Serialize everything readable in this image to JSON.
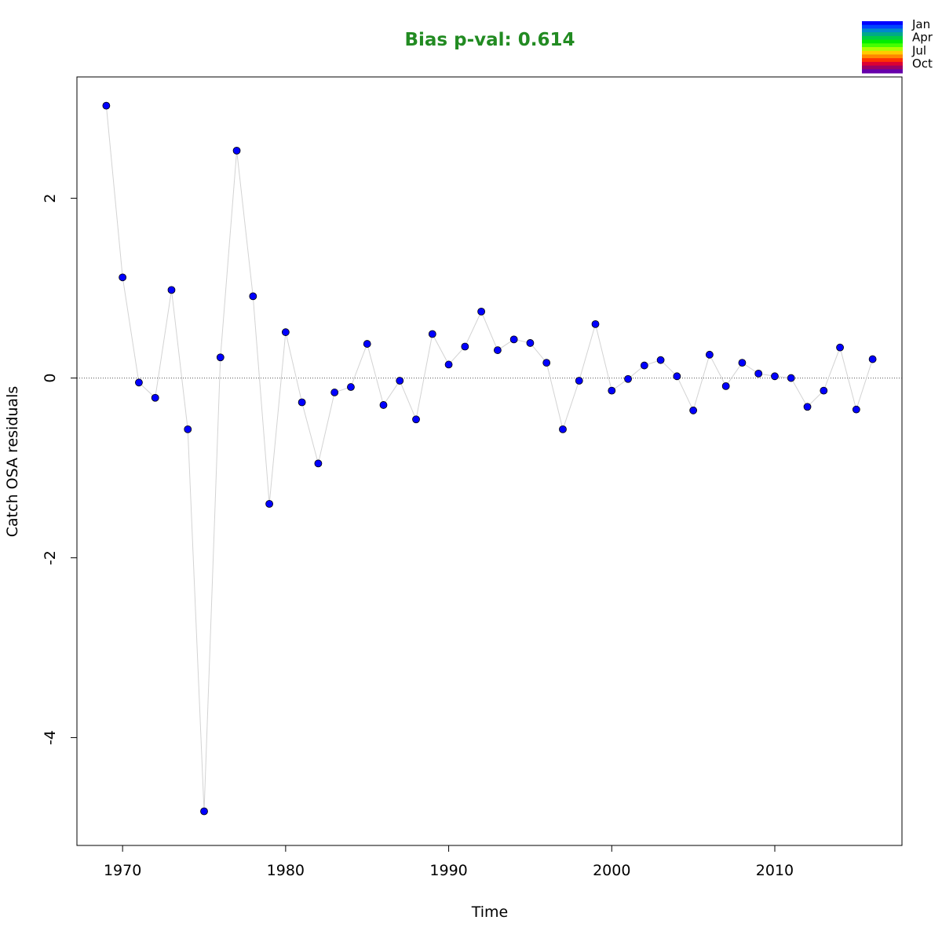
{
  "chart_data": {
    "type": "scatter",
    "title": "Bias p-val: 0.614",
    "title_color": "#228b22",
    "xlabel": "Time",
    "ylabel": "Catch OSA residuals",
    "xlim": [
      1967.2,
      2017.8
    ],
    "ylim": [
      -5.2,
      3.35
    ],
    "x_ticks": [
      1970,
      1980,
      1990,
      2000,
      2010
    ],
    "y_ticks": [
      -4,
      -2,
      0,
      2
    ],
    "reference_line": 0,
    "grid": false,
    "point_color": "#0000ff",
    "line_color": "#d3d3d3",
    "series": [
      {
        "x": [
          1969,
          1970,
          1971,
          1972,
          1973,
          1974,
          1975,
          1976,
          1977,
          1978,
          1979,
          1980,
          1981,
          1982,
          1983,
          1984,
          1985,
          1986,
          1987,
          1988,
          1989,
          1990,
          1991,
          1992,
          1993,
          1994,
          1995,
          1996,
          1997,
          1998,
          1999,
          2000,
          2001,
          2002,
          2003,
          2004,
          2005,
          2006,
          2007,
          2008,
          2009,
          2010,
          2011,
          2012,
          2013,
          2014,
          2015,
          2016
        ],
        "y": [
          3.03,
          1.12,
          -0.05,
          -0.22,
          0.98,
          -0.57,
          -4.82,
          0.23,
          2.53,
          0.91,
          -1.4,
          0.51,
          -0.27,
          -0.95,
          -0.16,
          -0.1,
          0.38,
          -0.3,
          -0.03,
          -0.46,
          0.49,
          0.15,
          0.35,
          0.74,
          0.31,
          0.43,
          0.39,
          0.17,
          -0.57,
          -0.03,
          0.6,
          -0.14,
          -0.01,
          0.14,
          0.2,
          0.02,
          -0.36,
          0.26,
          -0.09,
          0.17,
          0.05,
          0.02,
          0.0,
          -0.32,
          -0.14,
          0.34,
          -0.35,
          0.21
        ]
      }
    ],
    "legend": {
      "placement": "top-right",
      "labels": [
        "Jan",
        "Apr",
        "Jul",
        "Oct"
      ],
      "colors": [
        "#0000ff",
        "#0044ff",
        "#0088cc",
        "#00aa88",
        "#00cc44",
        "#00ee00",
        "#44ff00",
        "#aaff00",
        "#ffcc00",
        "#ff8800",
        "#ff3300",
        "#dd0033",
        "#990066",
        "#6600aa"
      ]
    }
  }
}
